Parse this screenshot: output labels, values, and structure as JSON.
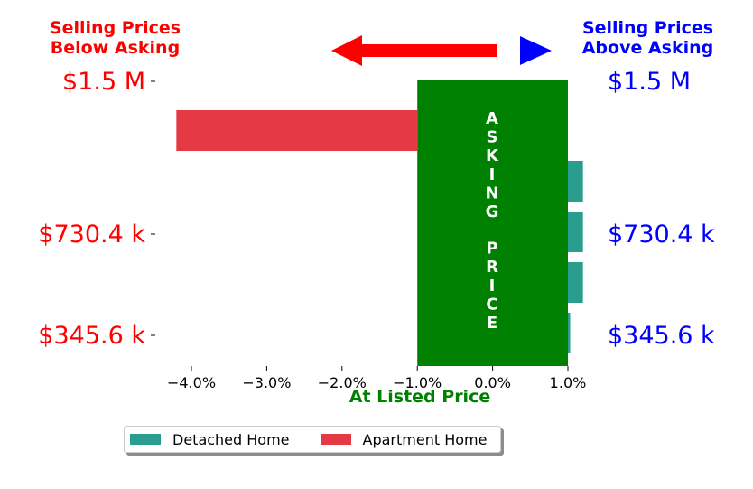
{
  "header": {
    "left_line1": "Selling Prices",
    "left_line2": "Below Asking",
    "right_line1": "Selling Prices",
    "right_line2": "Above Asking"
  },
  "colors": {
    "left_text": "#ff0000",
    "right_text": "#0000ff",
    "left_arrow": "#ff0000",
    "right_arrow": "#0000ff",
    "asking_band": "#008000",
    "asking_text": "#ffffff",
    "xlabel": "#008000"
  },
  "chart_data": {
    "type": "bar",
    "orientation": "horizontal",
    "xlabel": "At Listed Price",
    "xlim": [
      -4.0,
      1.0
    ],
    "x_ticks": [
      -4.0,
      -3.0,
      -2.0,
      -1.0,
      0.0,
      1.0
    ],
    "x_tick_labels": [
      "−4.0%",
      "−3.0%",
      "−2.0%",
      "−1.0%",
      "0.0%",
      "1.0%"
    ],
    "y_tick_labels_left": [
      "$1.5 M",
      "$730.4 k",
      "$345.6 k"
    ],
    "y_tick_labels_right": [
      "$1.5 M",
      "$730.4 k",
      "$345.6 k"
    ],
    "asking_price_band": {
      "x_from": -1.0,
      "x_to": 1.0,
      "label": "ASKING  PRICE"
    },
    "series": [
      {
        "name": "Detached Home",
        "color": "#2a9d8f",
        "bars": [
          {
            "row": 2,
            "value": 1.2
          },
          {
            "row": 3,
            "value": 1.2
          },
          {
            "row": 4,
            "value": 1.2
          },
          {
            "row": 5,
            "value": 1.03
          }
        ]
      },
      {
        "name": "Apartment Home",
        "color": "#e63946",
        "bars": [
          {
            "row": 1,
            "value": -4.2
          }
        ]
      }
    ],
    "legend_position": "bottom",
    "grid": false
  }
}
